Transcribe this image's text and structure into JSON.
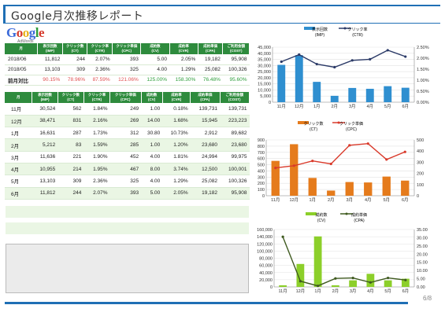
{
  "page": {
    "title": "Google月次推移レポート",
    "logo_text": "Google",
    "logo_sub": "AdWords",
    "page_number": "6/8"
  },
  "summary_table": {
    "headers": [
      "月",
      "表示回数\n(IMP)",
      "クリック数\n(CT)",
      "クリック率\n(CTR)",
      "クリック単価\n(CPC)",
      "成約数\n(CV)",
      "成約率\n(CVR)",
      "成約単価\n(CPA)",
      "ご利用金額\n(COST)"
    ],
    "rows": [
      [
        "2018/06",
        "11,812",
        "244",
        "2.07%",
        "393",
        "5.00",
        "2.05%",
        "19,182",
        "95,908"
      ],
      [
        "2018/05",
        "13,103",
        "309",
        "2.36%",
        "325",
        "4.00",
        "1.29%",
        "25,082",
        "100,326"
      ]
    ],
    "compare_row": [
      "前月対比",
      "90.15%",
      "78.96%",
      "87.59%",
      "121.06%",
      "125.00%",
      "158.30%",
      "76.48%",
      "95.60%"
    ],
    "compare_tones": [
      "",
      "neg",
      "neg",
      "neg",
      "neg",
      "pos",
      "pos",
      "pos",
      "pos"
    ]
  },
  "monthly_table": {
    "headers": [
      "月",
      "表示回数\n(IMP)",
      "クリック数\n(CT)",
      "クリック率\n(CTR)",
      "クリック単価\n(CPC)",
      "成約数\n(CV)",
      "成約率\n(CVR)",
      "成約単価\n(CPA)",
      "ご利用金額\n(COST)"
    ],
    "rows": [
      [
        "11月",
        "30,524",
        "562",
        "1.84%",
        "249",
        "1.00",
        "0.18%",
        "139,731",
        "139,731"
      ],
      [
        "12月",
        "38,471",
        "831",
        "2.16%",
        "269",
        "14.00",
        "1.68%",
        "15,945",
        "223,223"
      ],
      [
        "1月",
        "16,631",
        "287",
        "1.73%",
        "312",
        "30.80",
        "10.73%",
        "2,912",
        "89,682"
      ],
      [
        "2月",
        "5,212",
        "83",
        "1.59%",
        "285",
        "1.00",
        "1.20%",
        "23,680",
        "23,680"
      ],
      [
        "3月",
        "11,636",
        "221",
        "1.90%",
        "452",
        "4.00",
        "1.81%",
        "24,994",
        "99,975"
      ],
      [
        "4月",
        "10,955",
        "214",
        "1.95%",
        "467",
        "8.00",
        "3.74%",
        "12,500",
        "100,001"
      ],
      [
        "5月",
        "13,103",
        "309",
        "2.36%",
        "325",
        "4.00",
        "1.29%",
        "25,082",
        "100,326"
      ],
      [
        "6月",
        "11,812",
        "244",
        "2.07%",
        "393",
        "5.00",
        "2.05%",
        "19,182",
        "95,908"
      ]
    ]
  },
  "chart_data": [
    {
      "type": "bar",
      "categories": [
        "11月",
        "12月",
        "1月",
        "2月",
        "3月",
        "4月",
        "5月",
        "6月"
      ],
      "series": [
        {
          "name": "表示回数\n(IMP)",
          "kind": "bar",
          "axis": "left",
          "values": [
            30524,
            38471,
            16631,
            5212,
            11636,
            10955,
            13103,
            11812
          ]
        },
        {
          "name": "クリック率\n(CTR)",
          "kind": "line",
          "axis": "right",
          "values": [
            1.84,
            2.16,
            1.73,
            1.59,
            1.9,
            1.95,
            2.36,
            2.07
          ]
        }
      ],
      "ylim_left": [
        0,
        45000
      ],
      "ylim_right": [
        0,
        2.5
      ],
      "yticks_left": [
        "0",
        "5,000",
        "10,000",
        "15,000",
        "20,000",
        "25,000",
        "30,000",
        "35,000",
        "40,000",
        "45,000"
      ],
      "yticks_right": [
        "0.00%",
        "0.50%",
        "1.00%",
        "1.50%",
        "2.00%",
        "2.50%"
      ],
      "colors": {
        "bar": "#2f8fd0",
        "line": "#2b3a67"
      }
    },
    {
      "type": "bar",
      "categories": [
        "11月",
        "12月",
        "1月",
        "2月",
        "3月",
        "4月",
        "5月",
        "6月"
      ],
      "series": [
        {
          "name": "クリック数\n(CT)",
          "kind": "bar",
          "axis": "left",
          "values": [
            562,
            831,
            287,
            83,
            221,
            214,
            309,
            244
          ]
        },
        {
          "name": "クリック単価\n(CPC)",
          "kind": "line",
          "axis": "right",
          "values": [
            249,
            269,
            312,
            285,
            452,
            467,
            325,
            393
          ]
        }
      ],
      "ylim_left": [
        0,
        900
      ],
      "ylim_right": [
        0,
        500
      ],
      "yticks_left": [
        "0",
        "100",
        "200",
        "300",
        "400",
        "500",
        "600",
        "700",
        "800",
        "900"
      ],
      "yticks_right": [
        "0",
        "100",
        "200",
        "300",
        "400",
        "500"
      ],
      "colors": {
        "bar": "#e57b1c",
        "line": "#d93a2b"
      }
    },
    {
      "type": "bar",
      "categories": [
        "11月",
        "12月",
        "1月",
        "2月",
        "3月",
        "4月",
        "5月",
        "6月"
      ],
      "series": [
        {
          "name": "成約数\n(CV)",
          "kind": "bar",
          "axis": "right",
          "values": [
            1,
            14,
            30.8,
            1,
            4,
            8,
            4,
            5
          ]
        },
        {
          "name": "成約単価\n(CPA)",
          "kind": "line",
          "axis": "left",
          "values": [
            139731,
            15945,
            2912,
            23680,
            24994,
            12500,
            25082,
            19182
          ]
        }
      ],
      "ylim_left": [
        0,
        160000
      ],
      "ylim_right": [
        0,
        35
      ],
      "yticks_left": [
        "0",
        "20,000",
        "40,000",
        "60,000",
        "80,000",
        "100,000",
        "120,000",
        "140,000",
        "160,000"
      ],
      "yticks_right": [
        "0.00",
        "5.00",
        "10.00",
        "15.00",
        "20.00",
        "25.00",
        "30.00",
        "35.00"
      ],
      "colors": {
        "bar": "#8ccf2a",
        "line": "#3f5a1f"
      }
    }
  ]
}
